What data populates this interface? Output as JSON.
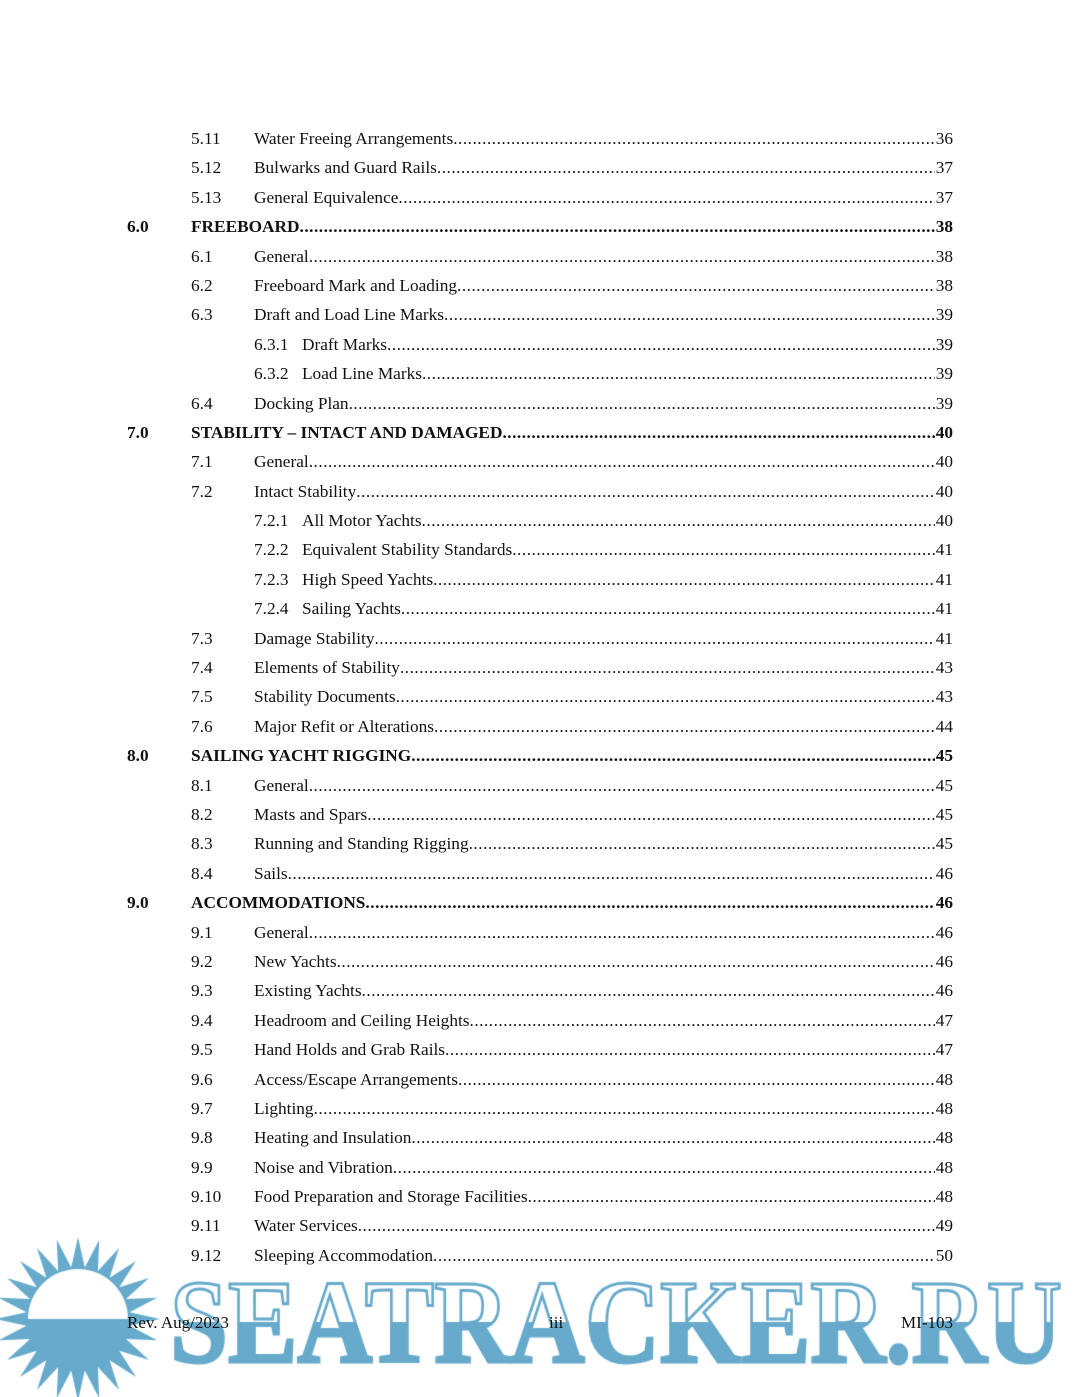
{
  "toc": [
    {
      "level": "sub",
      "num": "5.11",
      "title": "Water Freeing Arrangements",
      "page": "36"
    },
    {
      "level": "sub",
      "num": "5.12",
      "title": "Bulwarks and Guard Rails",
      "page": "37"
    },
    {
      "level": "sub",
      "num": "5.13",
      "title": "General Equivalence",
      "page": "37"
    },
    {
      "level": "major",
      "num": "6.0",
      "title": "FREEBOARD",
      "page": "38"
    },
    {
      "level": "sub",
      "num": "6.1",
      "title": "General",
      "page": "38"
    },
    {
      "level": "sub",
      "num": "6.2",
      "title": "Freeboard Mark and Loading",
      "page": "38"
    },
    {
      "level": "sub",
      "num": "6.3",
      "title": "Draft and Load Line Marks",
      "page": "39"
    },
    {
      "level": "subsub",
      "num": "6.3.1",
      "title": "Draft Marks",
      "page": "39"
    },
    {
      "level": "subsub",
      "num": "6.3.2",
      "title": "Load Line Marks",
      "page": "39"
    },
    {
      "level": "sub",
      "num": "6.4",
      "title": "Docking Plan",
      "page": "39"
    },
    {
      "level": "major",
      "num": "7.0",
      "title": "STABILITY – INTACT AND DAMAGED",
      "page": "40"
    },
    {
      "level": "sub",
      "num": "7.1",
      "title": "General",
      "page": "40"
    },
    {
      "level": "sub",
      "num": "7.2",
      "title": "Intact Stability",
      "page": "40"
    },
    {
      "level": "subsub",
      "num": "7.2.1",
      "title": "All Motor Yachts",
      "page": "40"
    },
    {
      "level": "subsub",
      "num": "7.2.2",
      "title": "Equivalent Stability Standards",
      "page": "41"
    },
    {
      "level": "subsub",
      "num": "7.2.3",
      "title": "High Speed Yachts",
      "page": "41"
    },
    {
      "level": "subsub",
      "num": "7.2.4",
      "title": "Sailing Yachts",
      "page": "41"
    },
    {
      "level": "sub",
      "num": "7.3",
      "title": "Damage Stability",
      "page": "41"
    },
    {
      "level": "sub",
      "num": "7.4",
      "title": "Elements of Stability",
      "page": "43"
    },
    {
      "level": "sub",
      "num": "7.5",
      "title": "Stability Documents",
      "page": "43"
    },
    {
      "level": "sub",
      "num": "7.6",
      "title": "Major Refit or Alterations",
      "page": "44"
    },
    {
      "level": "major",
      "num": "8.0",
      "title": "SAILING YACHT RIGGING",
      "page": "45"
    },
    {
      "level": "sub",
      "num": "8.1",
      "title": "General",
      "page": "45"
    },
    {
      "level": "sub",
      "num": "8.2",
      "title": "Masts and Spars",
      "page": "45"
    },
    {
      "level": "sub",
      "num": "8.3",
      "title": "Running and Standing Rigging",
      "page": "45"
    },
    {
      "level": "sub",
      "num": "8.4",
      "title": "Sails",
      "page": "46"
    },
    {
      "level": "major",
      "num": "9.0",
      "title": "ACCOMMODATIONS",
      "page": "46"
    },
    {
      "level": "sub",
      "num": "9.1",
      "title": "General",
      "page": "46"
    },
    {
      "level": "sub",
      "num": "9.2",
      "title": "New Yachts",
      "page": "46"
    },
    {
      "level": "sub",
      "num": "9.3",
      "title": "Existing Yachts",
      "page": "46"
    },
    {
      "level": "sub",
      "num": "9.4",
      "title": "Headroom and Ceiling Heights",
      "page": "47"
    },
    {
      "level": "sub",
      "num": "9.5",
      "title": "Hand Holds and Grab Rails",
      "page": "47"
    },
    {
      "level": "sub",
      "num": "9.6",
      "title": "Access/Escape Arrangements",
      "page": "48"
    },
    {
      "level": "sub",
      "num": "9.7",
      "title": "Lighting",
      "page": "48"
    },
    {
      "level": "sub",
      "num": "9.8",
      "title": "Heating and Insulation",
      "page": "48"
    },
    {
      "level": "sub",
      "num": "9.9",
      "title": "Noise and Vibration",
      "page": "48"
    },
    {
      "level": "sub",
      "num": "9.10",
      "title": "Food Preparation and Storage Facilities",
      "page": "48"
    },
    {
      "level": "sub",
      "num": "9.11",
      "title": "Water Services",
      "page": "49"
    },
    {
      "level": "sub",
      "num": "9.12",
      "title": "Sleeping Accommodation",
      "page": "50"
    }
  ],
  "footer": {
    "left": "Rev. Aug/2023",
    "center": "iii",
    "right": "MI-103"
  },
  "watermark": {
    "text": "SEATRACKER.RU",
    "color": "#67aacb"
  }
}
